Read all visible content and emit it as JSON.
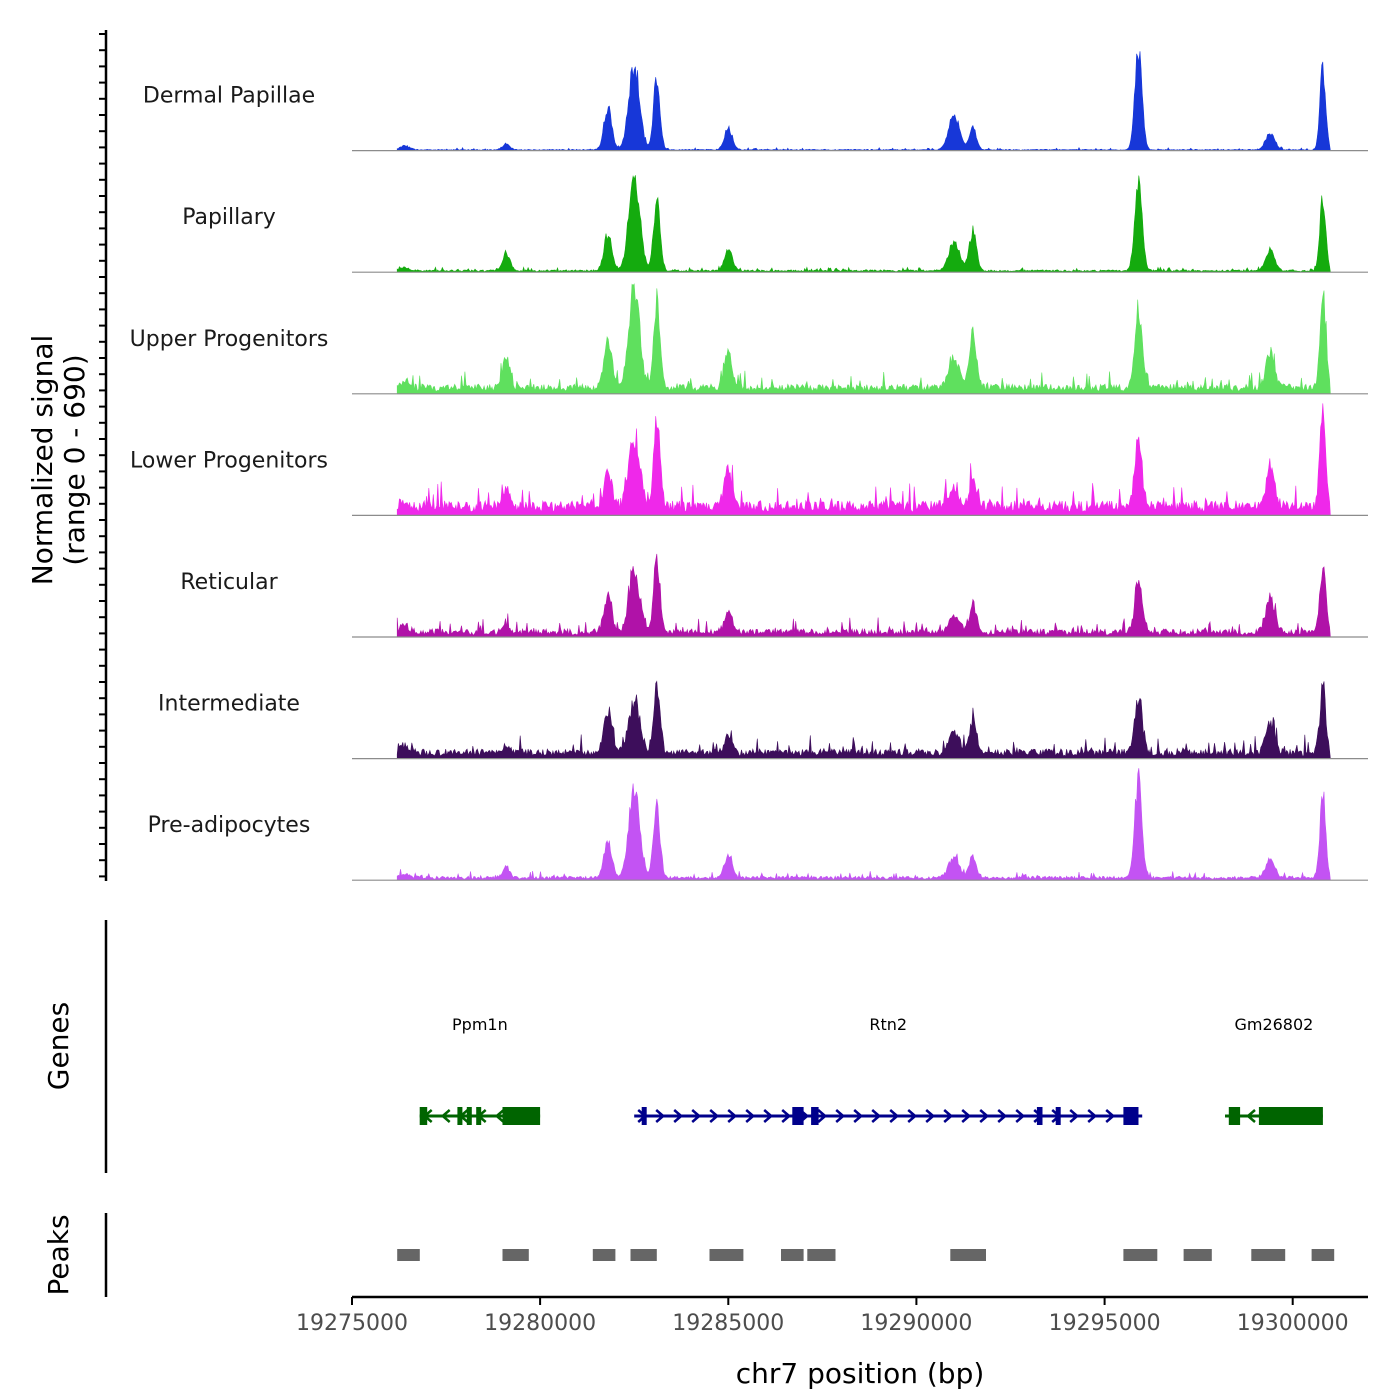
{
  "chart_data": {
    "type": "area",
    "chromosome": "chr7",
    "x_range": [
      19275000,
      19302000
    ],
    "x_ticks": [
      19275000,
      19280000,
      19285000,
      19290000,
      19295000,
      19300000
    ],
    "x_tick_labels": [
      "19275000",
      "19280000",
      "19285000",
      "19290000",
      "19295000",
      "19300000"
    ],
    "xlabel": "chr7 position (bp)",
    "ylabel_line1": "Normalized signal",
    "ylabel_line2": "(range 0 - 690)",
    "ylim": [
      0,
      690
    ],
    "signal_start": 19276200,
    "signal_end": 19301000,
    "peak_centers": [
      19276400,
      19279100,
      19281800,
      19282500,
      19283100,
      19285000,
      19291000,
      19291500,
      19295900,
      19299400,
      19300800
    ],
    "series": [
      {
        "name": "Dermal Papillae",
        "color": "#1737d8",
        "peaks": [
          30,
          40,
          300,
          600,
          500,
          150,
          230,
          150,
          680,
          120,
          560
        ],
        "baseline": 8
      },
      {
        "name": "Papillary",
        "color": "#14ab0e",
        "peaks": [
          25,
          120,
          260,
          680,
          500,
          150,
          200,
          280,
          650,
          140,
          520
        ],
        "baseline": 15
      },
      {
        "name": "Upper Progenitors",
        "color": "#5fe05e",
        "peaks": [
          40,
          200,
          350,
          690,
          600,
          250,
          200,
          380,
          550,
          240,
          650
        ],
        "baseline": 60
      },
      {
        "name": "Lower Progenitors",
        "color": "#ef28ea",
        "peaks": [
          40,
          100,
          250,
          500,
          600,
          270,
          120,
          200,
          480,
          250,
          690
        ],
        "baseline": 90
      },
      {
        "name": "Reticular",
        "color": "#b012a8",
        "peaks": [
          50,
          50,
          250,
          420,
          500,
          150,
          110,
          200,
          380,
          250,
          460
        ],
        "baseline": 50
      },
      {
        "name": "Intermediate",
        "color": "#3d0e5b",
        "peaks": [
          50,
          50,
          300,
          380,
          500,
          120,
          150,
          240,
          400,
          200,
          480
        ],
        "baseline": 60
      },
      {
        "name": "Pre-adipocytes",
        "color": "#c353f3",
        "peaks": [
          30,
          80,
          250,
          650,
          490,
          150,
          140,
          150,
          690,
          130,
          620
        ],
        "baseline": 25
      }
    ],
    "genes": [
      {
        "name": "Ppm1n",
        "start": 19276800,
        "end": 19280000,
        "strand": "-",
        "color": "#006400",
        "exons": [
          [
            19276800,
            19277000
          ],
          [
            19277800,
            19277900
          ],
          [
            19278050,
            19278120
          ],
          [
            19278300,
            19278380
          ],
          [
            19279000,
            19280000
          ]
        ]
      },
      {
        "name": "Rtn2",
        "start": 19282500,
        "end": 19296000,
        "strand": "+",
        "color": "#00008b",
        "exons": [
          [
            19282700,
            19282800
          ],
          [
            19286700,
            19287000
          ],
          [
            19287200,
            19287400
          ],
          [
            19293200,
            19293350
          ],
          [
            19293700,
            19293800
          ],
          [
            19295500,
            19295900
          ]
        ]
      },
      {
        "name": "Gm26802",
        "start": 19298200,
        "end": 19300800,
        "strand": "-",
        "color": "#006400",
        "exons": [
          [
            19298300,
            19298600
          ],
          [
            19299100,
            19300800
          ]
        ]
      }
    ],
    "genes_track_label": "Genes",
    "peaks_track_label": "Peaks",
    "peak_regions": [
      [
        19276200,
        19276800
      ],
      [
        19279000,
        19279700
      ],
      [
        19281400,
        19282000
      ],
      [
        19282400,
        19283100
      ],
      [
        19284500,
        19285400
      ],
      [
        19286400,
        19287000
      ],
      [
        19287100,
        19287850
      ],
      [
        19290900,
        19291850
      ],
      [
        19295500,
        19296400
      ],
      [
        19297100,
        19297850
      ],
      [
        19298900,
        19299800
      ],
      [
        19300500,
        19301100
      ]
    ]
  }
}
